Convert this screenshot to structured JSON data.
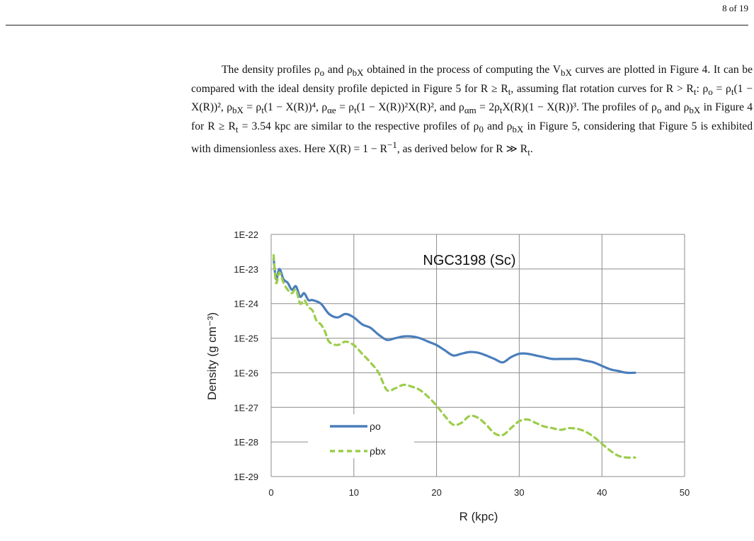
{
  "header": {
    "page_number": "8 of 19"
  },
  "paragraph": {
    "p1": "The density profiles ρ",
    "p1b": "o",
    "p2": " and ρ",
    "p2b": "bX",
    "p3": " obtained in the process of computing the V",
    "p3b": "bX",
    "p4": " curves are plotted in Figure 4. It can be compared with the ideal density profile depicted in Figure 5 for R ≥ R",
    "p4b": "t",
    "p5": ", assuming flat rotation curves for R > R",
    "p5b": "t",
    "p6": ": ρ",
    "p6b": "o",
    "p7": " = ρ",
    "p7b": "t",
    "p8": "(1 − X(R))², ρ",
    "p8b": "bX",
    "p9": " = ρ",
    "p9b": "t",
    "p10": "(1 − X(R))⁴, ρ",
    "p10b": "αe",
    "p11": " = ρ",
    "p11b": "t",
    "p12": "(1 − X(R))²X(R)², and ρ",
    "p12b": "αm",
    "p13": " = 2ρ",
    "p13b": "t",
    "p14": "X(R)(1 − X(R))³. The profiles of ρ",
    "p14b": "o",
    "p15": " and ρ",
    "p15b": "bX",
    "p16": " in Figure 4 for R ≥ R",
    "p16b": "t",
    "p17": " = 3.54 kpc are similar to the respective profiles of ρ",
    "p17b": "0",
    "p18": " and ρ",
    "p18b": "bX",
    "p19": " in Figure 5, considering that Figure 5 is exhibited with dimensionless axes. Here X(R) = 1 − R",
    "p19sup": "−1",
    "p20": ", as derived below for R ≫ R",
    "p20b": "t",
    "p21": "."
  },
  "chart_data": {
    "type": "line",
    "title": "NGC3198 (Sc)",
    "xlabel": "R (kpc)",
    "ylabel": "Density (g cm⁻³)",
    "xlim": [
      0,
      50
    ],
    "xticks": [
      "0",
      "10",
      "20",
      "30",
      "40",
      "50"
    ],
    "ylim_log10": [
      -29,
      -22
    ],
    "yticks": [
      "1E-22",
      "1E-23",
      "1E-24",
      "1E-25",
      "1E-26",
      "1E-27",
      "1E-28",
      "1E-29"
    ],
    "grid": true,
    "legend_position": "bottom-left",
    "series": [
      {
        "name": "ρo",
        "color": "#4a7ebb",
        "style": "solid",
        "log10_values": [
          [
            0.3,
            -22.7
          ],
          [
            0.6,
            -23.3
          ],
          [
            1.0,
            -23.0
          ],
          [
            1.5,
            -23.3
          ],
          [
            2.0,
            -23.4
          ],
          [
            2.5,
            -23.6
          ],
          [
            3.0,
            -23.5
          ],
          [
            3.5,
            -23.8
          ],
          [
            4.0,
            -23.7
          ],
          [
            4.5,
            -23.9
          ],
          [
            5.0,
            -23.9
          ],
          [
            6.0,
            -24.0
          ],
          [
            7.0,
            -24.3
          ],
          [
            8.0,
            -24.4
          ],
          [
            9.0,
            -24.3
          ],
          [
            10.0,
            -24.4
          ],
          [
            11.0,
            -24.6
          ],
          [
            12.0,
            -24.7
          ],
          [
            13.0,
            -24.9
          ],
          [
            14.0,
            -25.05
          ],
          [
            15.0,
            -25.0
          ],
          [
            16.0,
            -24.95
          ],
          [
            17.0,
            -24.95
          ],
          [
            18.0,
            -25.0
          ],
          [
            19.0,
            -25.1
          ],
          [
            20.0,
            -25.2
          ],
          [
            21.0,
            -25.35
          ],
          [
            22.0,
            -25.5
          ],
          [
            23.0,
            -25.45
          ],
          [
            24.0,
            -25.4
          ],
          [
            25.0,
            -25.42
          ],
          [
            26.0,
            -25.5
          ],
          [
            27.0,
            -25.6
          ],
          [
            28.0,
            -25.7
          ],
          [
            29.0,
            -25.55
          ],
          [
            30.0,
            -25.45
          ],
          [
            31.0,
            -25.45
          ],
          [
            32.0,
            -25.5
          ],
          [
            33.0,
            -25.55
          ],
          [
            34.0,
            -25.6
          ],
          [
            35.0,
            -25.6
          ],
          [
            36.0,
            -25.6
          ],
          [
            37.0,
            -25.6
          ],
          [
            38.0,
            -25.65
          ],
          [
            39.0,
            -25.7
          ],
          [
            40.0,
            -25.8
          ],
          [
            41.0,
            -25.9
          ],
          [
            42.0,
            -25.95
          ],
          [
            43.0,
            -26.0
          ],
          [
            44.0,
            -26.0
          ]
        ]
      },
      {
        "name": "ρbx",
        "color": "#9bcd4a",
        "style": "dashed",
        "log10_values": [
          [
            0.3,
            -22.6
          ],
          [
            0.6,
            -23.4
          ],
          [
            1.0,
            -23.1
          ],
          [
            1.5,
            -23.4
          ],
          [
            2.0,
            -23.6
          ],
          [
            2.5,
            -23.7
          ],
          [
            3.0,
            -23.6
          ],
          [
            3.5,
            -24.0
          ],
          [
            4.0,
            -23.9
          ],
          [
            4.5,
            -24.1
          ],
          [
            5.0,
            -24.2
          ],
          [
            5.5,
            -24.5
          ],
          [
            6.0,
            -24.6
          ],
          [
            6.5,
            -24.8
          ],
          [
            7.0,
            -25.1
          ],
          [
            8.0,
            -25.2
          ],
          [
            9.0,
            -25.1
          ],
          [
            10.0,
            -25.2
          ],
          [
            11.0,
            -25.45
          ],
          [
            12.0,
            -25.7
          ],
          [
            13.0,
            -26.0
          ],
          [
            14.0,
            -26.5
          ],
          [
            15.0,
            -26.45
          ],
          [
            16.0,
            -26.35
          ],
          [
            17.0,
            -26.4
          ],
          [
            18.0,
            -26.5
          ],
          [
            19.0,
            -26.7
          ],
          [
            20.0,
            -26.95
          ],
          [
            21.0,
            -27.25
          ],
          [
            22.0,
            -27.5
          ],
          [
            23.0,
            -27.45
          ],
          [
            24.0,
            -27.25
          ],
          [
            25.0,
            -27.3
          ],
          [
            26.0,
            -27.5
          ],
          [
            27.0,
            -27.75
          ],
          [
            28.0,
            -27.8
          ],
          [
            29.0,
            -27.6
          ],
          [
            30.0,
            -27.4
          ],
          [
            31.0,
            -27.35
          ],
          [
            32.0,
            -27.45
          ],
          [
            33.0,
            -27.55
          ],
          [
            34.0,
            -27.6
          ],
          [
            35.0,
            -27.65
          ],
          [
            36.0,
            -27.6
          ],
          [
            37.0,
            -27.62
          ],
          [
            38.0,
            -27.7
          ],
          [
            39.0,
            -27.85
          ],
          [
            40.0,
            -28.05
          ],
          [
            41.0,
            -28.25
          ],
          [
            42.0,
            -28.4
          ],
          [
            43.0,
            -28.45
          ],
          [
            44.0,
            -28.45
          ]
        ]
      }
    ]
  }
}
